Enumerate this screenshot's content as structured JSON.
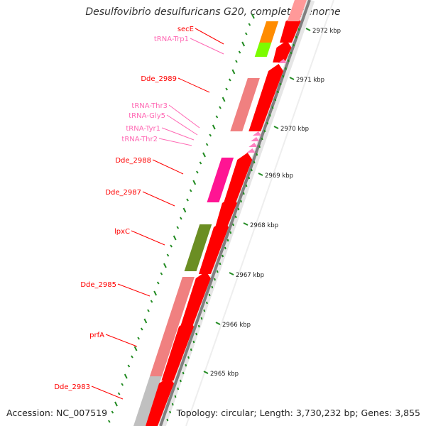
{
  "title": "Desulfovibrio desulfuricans G20, complete genome",
  "footer": {
    "accession": "Accession: NC_007519",
    "topology": "Topology: circular; Length: 3,730,232 bp; Genes: 3,855"
  },
  "colors": {
    "cds_forward": "#ff0000",
    "cds_reverse": "#f08080",
    "trna": "#ff80c0",
    "lpxC_highlight": "#6b8e23",
    "secE_highlight": "#ff8c00",
    "magenta_gene": "#ff1493",
    "green_gene": "#7cfc00",
    "backbone": "#808080",
    "tick": "#228b22",
    "label_red": "#ff0000",
    "label_pink": "#ff69b4"
  },
  "ruler_labels": [
    "2972 kbp",
    "2971 kbp",
    "2970 kbp",
    "2969 kbp",
    "2968 kbp",
    "2967 kbp",
    "2966 kbp",
    "2965 kbp"
  ],
  "gene_labels": [
    {
      "text": "secE",
      "kind": "cds"
    },
    {
      "text": "tRNA-Trp1",
      "kind": "trna"
    },
    {
      "text": "Dde_2989",
      "kind": "cds"
    },
    {
      "text": "tRNA-Thr3",
      "kind": "trna"
    },
    {
      "text": "tRNA-Gly5",
      "kind": "trna"
    },
    {
      "text": "tRNA-Tyr1",
      "kind": "trna"
    },
    {
      "text": "tRNA-Thr2",
      "kind": "trna"
    },
    {
      "text": "Dde_2988",
      "kind": "cds"
    },
    {
      "text": "Dde_2987",
      "kind": "cds"
    },
    {
      "text": "lpxC",
      "kind": "cds"
    },
    {
      "text": "Dde_2985",
      "kind": "cds"
    },
    {
      "text": "prfA",
      "kind": "cds"
    },
    {
      "text": "Dde_2983",
      "kind": "cds"
    }
  ]
}
